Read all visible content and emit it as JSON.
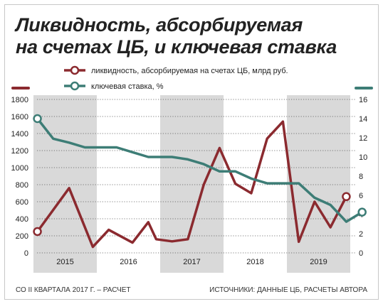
{
  "title": {
    "line1": "Ликвидность, абсорбируемая",
    "line2": "на счетах ЦБ, и ключевая ставка"
  },
  "footer": {
    "note": "СО II КВАРТАЛА 2017 Г. – РАСЧЕТ",
    "source": "ИСТОЧНИКИ: ДАННЫЕ ЦБ, РАСЧЕТЫ АВТОРА"
  },
  "colors": {
    "liquidity": "#8b2a2f",
    "rate": "#3d7d76",
    "band": "#d9d9d9",
    "grid": "#555555"
  },
  "chart_data": {
    "type": "line",
    "x": [
      "2015-01",
      "2015-02",
      "2015-03",
      "2015-04",
      "2015-05",
      "2015-06",
      "2015-07",
      "2015-08",
      "2016-01",
      "2016-02",
      "2016-03",
      "2016-04",
      "2016-05",
      "2016-06",
      "2016-07",
      "2016-08",
      "2017-01",
      "2017-02",
      "2017-03",
      "2017-04",
      "2017-05",
      "2017-06",
      "2017-07",
      "2017-08",
      "2018-01",
      "2018-02",
      "2018-03",
      "2018-04",
      "2018-05",
      "2018-06",
      "2018-07",
      "2018-08",
      "2019-01",
      "2019-02",
      "2019-03",
      "2019-04",
      "2019-05"
    ],
    "year_labels": [
      "2015",
      "2016",
      "2017",
      "2018",
      "2019"
    ],
    "shaded_years": [
      "2015",
      "2017",
      "2019"
    ],
    "series": [
      {
        "name": "ликвидность, абсорбируемая на счетах ЦБ, млрд руб.",
        "axis": "left",
        "color": "#8b2a2f",
        "points": [
          [
            "2015-01",
            250
          ],
          [
            "2015-05",
            760
          ],
          [
            "2015-08",
            70
          ],
          [
            "2016-02",
            270
          ],
          [
            "2016-05",
            120
          ],
          [
            "2016-07",
            360
          ],
          [
            "2016-08",
            160
          ],
          [
            "2017-02",
            135
          ],
          [
            "2017-04",
            160
          ],
          [
            "2017-06",
            800
          ],
          [
            "2017-08",
            1230
          ],
          [
            "2018-02",
            810
          ],
          [
            "2018-04",
            700
          ],
          [
            "2018-06",
            1340
          ],
          [
            "2018-08",
            1540
          ],
          [
            "2019-02",
            130
          ],
          [
            "2019-04",
            600
          ],
          [
            "2019-06",
            300
          ],
          [
            "2019-08",
            660
          ]
        ]
      },
      {
        "name": "ключевая ставка, %",
        "axis": "right",
        "color": "#3d7d76",
        "points": [
          [
            "2015-01",
            14
          ],
          [
            "2015-03",
            11.9
          ],
          [
            "2015-05",
            11.5
          ],
          [
            "2015-07",
            11
          ],
          [
            "2016-03",
            11
          ],
          [
            "2016-05",
            10.5
          ],
          [
            "2016-07",
            10
          ],
          [
            "2016-08",
            10
          ],
          [
            "2017-02",
            10
          ],
          [
            "2017-04",
            9.75
          ],
          [
            "2017-06",
            9.25
          ],
          [
            "2017-08",
            8.5
          ],
          [
            "2018-02",
            8.5
          ],
          [
            "2018-04",
            7.75
          ],
          [
            "2018-06",
            7.25
          ],
          [
            "2018-08",
            7.25
          ],
          [
            "2019-02",
            7.25
          ],
          [
            "2019-04",
            5.75
          ],
          [
            "2019-06",
            5
          ],
          [
            "2019-08",
            3.25
          ],
          [
            "2019-09",
            3.75
          ],
          [
            "2019-10",
            4.25
          ]
        ]
      }
    ],
    "y_left": {
      "min": 0,
      "max": 1800,
      "ticks": [
        0,
        200,
        400,
        600,
        800,
        1000,
        1200,
        1400,
        1600,
        1800
      ]
    },
    "y_right": {
      "min": 0,
      "max": 16,
      "ticks": [
        0,
        2,
        4,
        6,
        8,
        10,
        12,
        14,
        16
      ]
    },
    "grid": true,
    "legend_position": "top"
  }
}
